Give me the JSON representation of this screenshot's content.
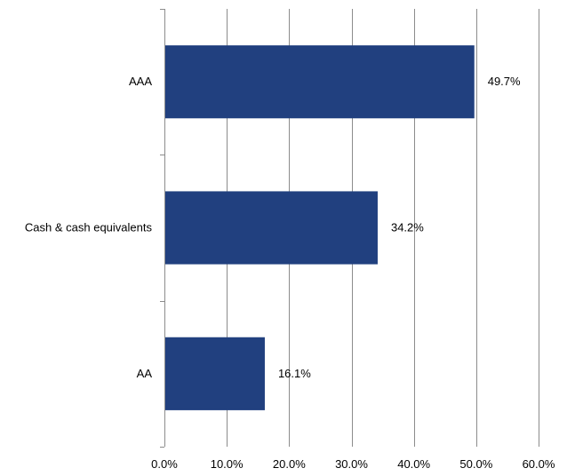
{
  "chart_data": {
    "type": "bar",
    "orientation": "horizontal",
    "title": "",
    "xlabel": "",
    "ylabel": "",
    "categories": [
      "AAA",
      "Cash & cash equivalents",
      "AA"
    ],
    "values": [
      49.7,
      34.2,
      16.1
    ],
    "data_labels": [
      "49.7%",
      "34.2%",
      "16.1%"
    ],
    "xlim": [
      0,
      60
    ],
    "x_ticks": [
      0,
      10,
      20,
      30,
      40,
      50,
      60
    ],
    "x_tick_labels": [
      "0.0%",
      "10.0%",
      "20.0%",
      "30.0%",
      "40.0%",
      "50.0%",
      "60.0%"
    ],
    "grid": "vertical",
    "legend": "none",
    "bar_color": "#21407f",
    "grid_color": "#8c8c8c"
  }
}
